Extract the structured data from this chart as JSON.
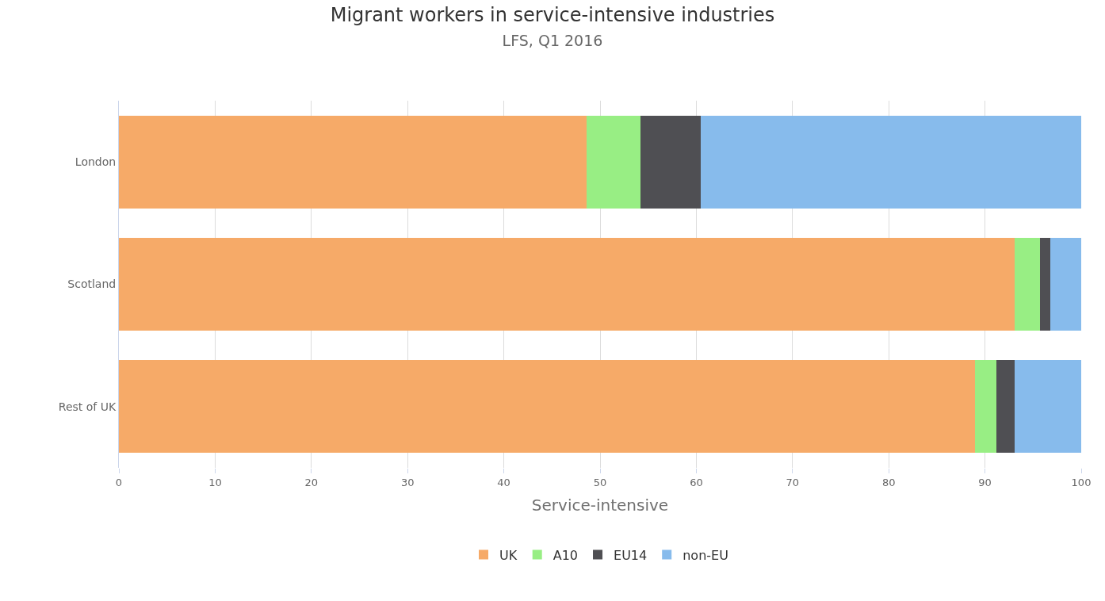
{
  "chart_data": {
    "type": "bar",
    "title": "Migrant workers in service-intensive industries",
    "subtitle": "LFS, Q1 2016",
    "xlabel": "Service-intensive",
    "orientation": "horizontal",
    "stacked": true,
    "categories": [
      "London",
      "Scotland",
      "Rest of UK"
    ],
    "series": [
      {
        "name": "UK",
        "color": "#f6aa68",
        "values": [
          48.6,
          93.1,
          89.0
        ]
      },
      {
        "name": "A10",
        "color": "#98ee84",
        "values": [
          5.6,
          2.6,
          2.2
        ]
      },
      {
        "name": "EU14",
        "color": "#4f4f53",
        "values": [
          6.3,
          1.1,
          1.9
        ]
      },
      {
        "name": "non-EU",
        "color": "#87bbec",
        "values": [
          39.5,
          3.2,
          6.9
        ]
      }
    ],
    "xlim": [
      0,
      100
    ],
    "xticks": [
      0,
      10,
      20,
      30,
      40,
      50,
      60,
      70,
      80,
      90,
      100
    ],
    "grid": "x",
    "legend": "bottom"
  }
}
